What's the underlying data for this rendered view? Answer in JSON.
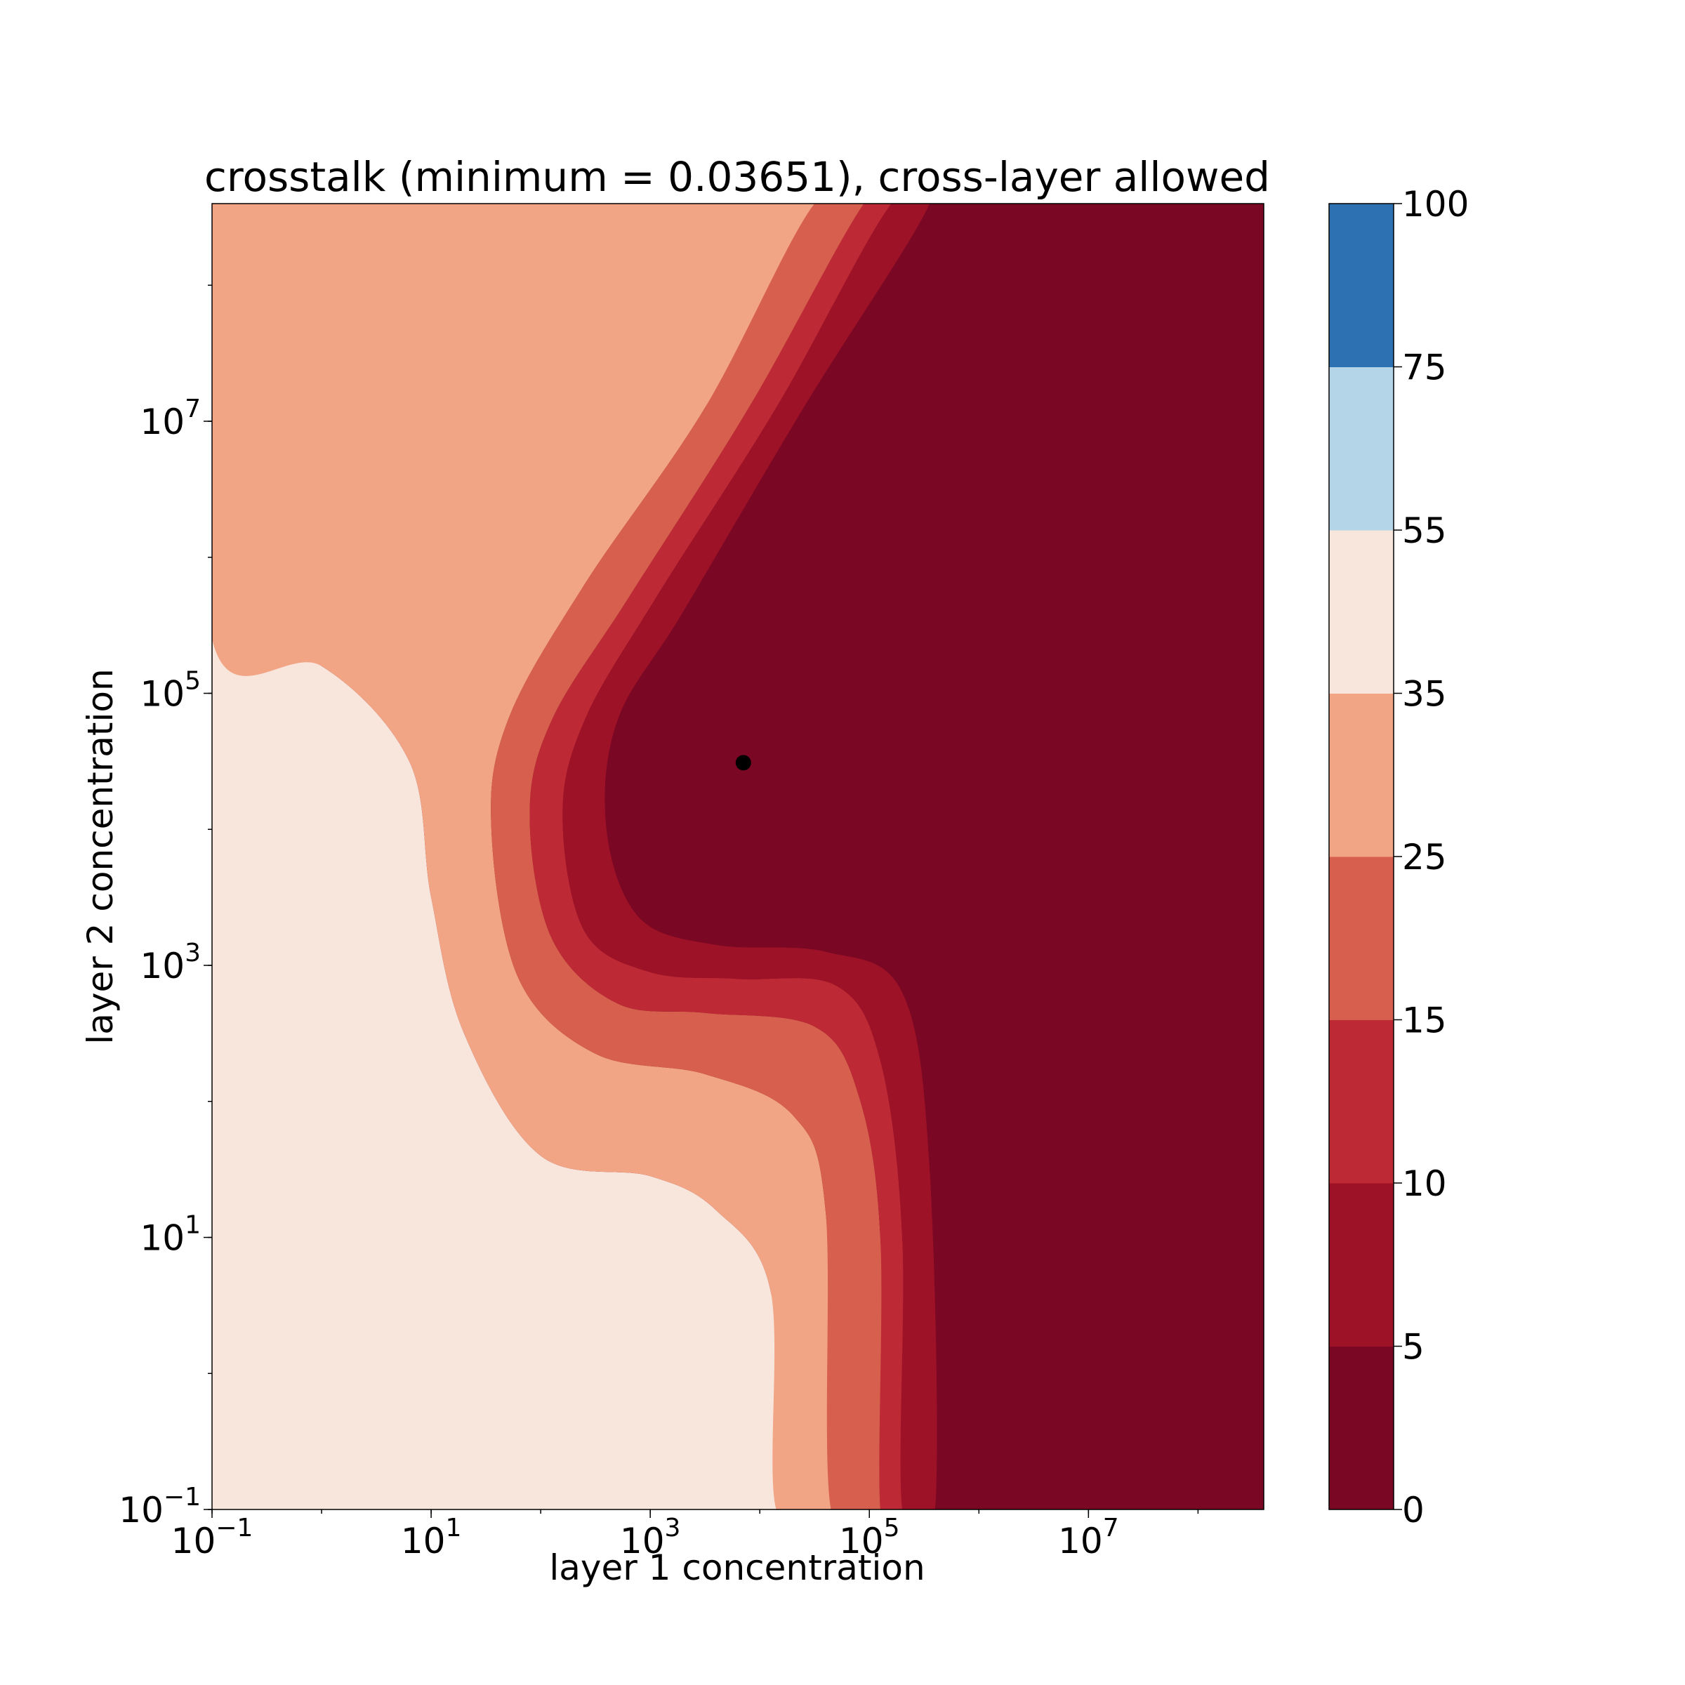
{
  "chart_data": {
    "type": "heatmap",
    "subtype": "filled-contour",
    "title": "crosstalk (minimum = 0.03651), cross-layer allowed",
    "xlabel": "layer 1 concentration",
    "ylabel": "layer 2 concentration",
    "xscale": "log",
    "yscale": "log",
    "x_range_log10": [
      -1,
      8.6
    ],
    "y_range_log10": [
      -1,
      8.6
    ],
    "x_ticks": [
      {
        "base": "10",
        "exp": "−1",
        "log10": -1
      },
      {
        "base": "10",
        "exp": "1",
        "log10": 1
      },
      {
        "base": "10",
        "exp": "3",
        "log10": 3
      },
      {
        "base": "10",
        "exp": "5",
        "log10": 5
      },
      {
        "base": "10",
        "exp": "7",
        "log10": 7
      }
    ],
    "y_ticks": [
      {
        "base": "10",
        "exp": "−1",
        "log10": -1
      },
      {
        "base": "10",
        "exp": "1",
        "log10": 1
      },
      {
        "base": "10",
        "exp": "3",
        "log10": 3
      },
      {
        "base": "10",
        "exp": "5",
        "log10": 5
      },
      {
        "base": "10",
        "exp": "7",
        "log10": 7
      }
    ],
    "levels": [
      0,
      5,
      10,
      15,
      25,
      35,
      55,
      75,
      100
    ],
    "level_labels": [
      "0",
      "5",
      "10",
      "15",
      "25",
      "35",
      "55",
      "75",
      "100"
    ],
    "band_colors": [
      "#7a0724",
      "#9e1227",
      "#bd2a35",
      "#d6604d",
      "#f2a585",
      "#f8e6dd",
      "#b4d5e7",
      "#2d71b2"
    ],
    "regions": [
      {
        "range": "35-55",
        "points_log10": [
          [
            -1,
            -1
          ],
          [
            -1,
            5.4
          ],
          [
            0,
            5.2
          ],
          [
            0.8,
            4.5
          ],
          [
            1,
            3.5
          ],
          [
            1.3,
            2.5
          ],
          [
            2,
            1.6
          ],
          [
            3,
            1.45
          ],
          [
            3.6,
            1.2
          ],
          [
            4.1,
            0.6
          ],
          [
            4.15,
            -1
          ]
        ]
      },
      {
        "range": "25-35",
        "points_log10": [
          [
            -1,
            5.4
          ],
          [
            -1,
            8.6
          ],
          [
            4.5,
            8.6
          ],
          [
            3.5,
            7.1
          ],
          [
            2.4,
            5.8
          ],
          [
            1.7,
            4.8
          ],
          [
            1.55,
            4
          ],
          [
            1.8,
            2.9
          ],
          [
            2.5,
            2.35
          ],
          [
            3.5,
            2.2
          ],
          [
            4.3,
            1.9
          ],
          [
            4.6,
            1.2
          ],
          [
            4.65,
            -1
          ],
          [
            4.15,
            -1
          ],
          [
            4.1,
            0.6
          ],
          [
            3.6,
            1.2
          ],
          [
            3,
            1.45
          ],
          [
            2,
            1.6
          ],
          [
            1.3,
            2.5
          ],
          [
            1,
            3.5
          ],
          [
            0.8,
            4.5
          ],
          [
            0,
            5.2
          ]
        ]
      },
      {
        "range": "15-25",
        "points_log10": [
          [
            4.5,
            8.6
          ],
          [
            4.95,
            8.6
          ],
          [
            3.9,
            7.1
          ],
          [
            2.8,
            5.7
          ],
          [
            2.1,
            4.8
          ],
          [
            1.9,
            4.1
          ],
          [
            2.1,
            3.2
          ],
          [
            2.7,
            2.72
          ],
          [
            3.5,
            2.65
          ],
          [
            4.5,
            2.55
          ],
          [
            4.9,
            2.05
          ],
          [
            5.1,
            1
          ],
          [
            5.1,
            -1
          ],
          [
            4.65,
            -1
          ],
          [
            4.6,
            1.2
          ],
          [
            4.3,
            1.9
          ],
          [
            3.5,
            2.2
          ],
          [
            2.5,
            2.35
          ],
          [
            1.8,
            2.9
          ],
          [
            1.55,
            4
          ],
          [
            1.7,
            4.8
          ],
          [
            2.4,
            5.8
          ],
          [
            3.5,
            7.1
          ]
        ]
      },
      {
        "range": "10-15",
        "points_log10": [
          [
            4.95,
            8.6
          ],
          [
            5.2,
            8.6
          ],
          [
            4.15,
            7.1
          ],
          [
            3.05,
            5.7
          ],
          [
            2.4,
            4.8
          ],
          [
            2.2,
            4.1
          ],
          [
            2.4,
            3.25
          ],
          [
            3,
            2.95
          ],
          [
            3.8,
            2.9
          ],
          [
            4.7,
            2.85
          ],
          [
            5.1,
            2.3
          ],
          [
            5.3,
            1
          ],
          [
            5.3,
            -1
          ],
          [
            5.1,
            -1
          ],
          [
            5.1,
            1
          ],
          [
            4.9,
            2.05
          ],
          [
            4.5,
            2.55
          ],
          [
            3.5,
            2.65
          ],
          [
            2.7,
            2.72
          ],
          [
            2.1,
            3.2
          ],
          [
            1.9,
            4.1
          ],
          [
            2.1,
            4.8
          ],
          [
            2.8,
            5.7
          ],
          [
            3.9,
            7.1
          ]
        ]
      },
      {
        "range": "5-10",
        "points_log10": [
          [
            5.2,
            8.6
          ],
          [
            5.55,
            8.6
          ],
          [
            4.4,
            7.1
          ],
          [
            3.3,
            5.6
          ],
          [
            2.7,
            4.8
          ],
          [
            2.6,
            4
          ],
          [
            2.9,
            3.35
          ],
          [
            3.6,
            3.15
          ],
          [
            4.6,
            3.1
          ],
          [
            5.3,
            2.8
          ],
          [
            5.55,
            1.5
          ],
          [
            5.6,
            -1
          ],
          [
            5.3,
            -1
          ],
          [
            5.3,
            1
          ],
          [
            5.1,
            2.3
          ],
          [
            4.7,
            2.85
          ],
          [
            3.8,
            2.9
          ],
          [
            3,
            2.95
          ],
          [
            2.4,
            3.25
          ],
          [
            2.2,
            4.1
          ],
          [
            2.4,
            4.8
          ],
          [
            3.05,
            5.7
          ],
          [
            4.15,
            7.1
          ]
        ]
      }
    ],
    "marker": {
      "label": "minimum",
      "x_log10": 3.85,
      "y_log10": 4.49,
      "color": "#000000"
    }
  }
}
